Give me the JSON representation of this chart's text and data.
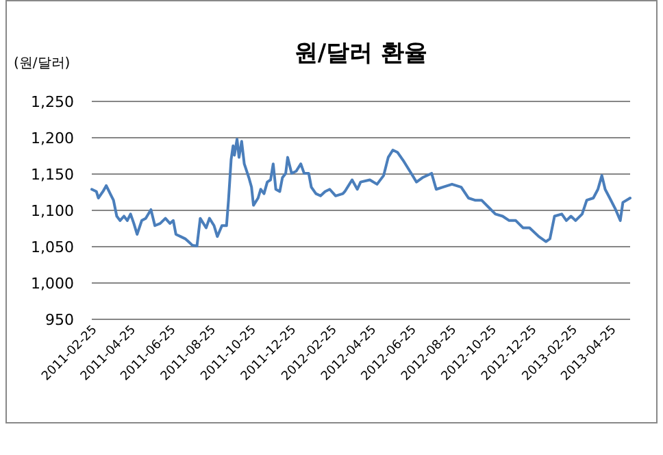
{
  "chart_data": {
    "type": "line",
    "title": "원/달러 환율",
    "ylabel": "(원/달러)",
    "xlim": [
      "2011-02-25",
      "2013-05-24"
    ],
    "xticks": [
      "2011-02-25",
      "2011-04-25",
      "2011-06-25",
      "2011-08-25",
      "2011-10-25",
      "2011-12-25",
      "2012-02-25",
      "2012-04-25",
      "2012-06-25",
      "2012-08-25",
      "2012-10-25",
      "2012-12-25",
      "2013-02-25",
      "2013-04-25"
    ],
    "ylim": [
      950,
      1250
    ],
    "yticks": [
      {
        "value": 950,
        "label": "950"
      },
      {
        "value": 1000,
        "label": "1,000"
      },
      {
        "value": 1050,
        "label": "1,050"
      },
      {
        "value": 1100,
        "label": "1,100"
      },
      {
        "value": 1150,
        "label": "1,150"
      },
      {
        "value": 1200,
        "label": "1,200"
      },
      {
        "value": 1250,
        "label": "1,250"
      }
    ],
    "grid": "y",
    "marker": "none",
    "line_style": "solid",
    "series": [
      {
        "color": "#4a7ebb",
        "x": [
          "2011-02-25",
          "2011-03-04",
          "2011-03-07",
          "2011-03-14",
          "2011-03-19",
          "2011-03-25",
          "2011-03-30",
          "2011-04-04",
          "2011-04-09",
          "2011-04-15",
          "2011-04-20",
          "2011-04-25",
          "2011-04-30",
          "2011-05-05",
          "2011-05-12",
          "2011-05-18",
          "2011-05-26",
          "2011-06-01",
          "2011-06-09",
          "2011-06-17",
          "2011-06-24",
          "2011-06-29",
          "2011-07-03",
          "2011-07-10",
          "2011-07-17",
          "2011-07-22",
          "2011-07-28",
          "2011-08-04",
          "2011-08-09",
          "2011-08-18",
          "2011-08-23",
          "2011-08-30",
          "2011-09-04",
          "2011-09-11",
          "2011-09-18",
          "2011-09-21",
          "2011-09-25",
          "2011-09-28",
          "2011-09-30",
          "2011-10-04",
          "2011-10-07",
          "2011-10-11",
          "2011-10-15",
          "2011-10-22",
          "2011-10-26",
          "2011-10-29",
          "2011-11-05",
          "2011-11-09",
          "2011-11-14",
          "2011-11-19",
          "2011-11-24",
          "2011-11-28",
          "2011-12-02",
          "2011-12-08",
          "2011-12-12",
          "2011-12-17",
          "2011-12-20",
          "2011-12-26",
          "2012-01-02",
          "2012-01-09",
          "2012-01-14",
          "2012-01-21",
          "2012-01-25",
          "2012-02-01",
          "2012-02-08",
          "2012-02-15",
          "2012-02-22",
          "2012-03-02",
          "2012-03-13",
          "2012-03-16",
          "2012-03-27",
          "2012-04-04",
          "2012-04-09",
          "2012-04-23",
          "2012-05-04",
          "2012-05-14",
          "2012-05-21",
          "2012-05-28",
          "2012-06-04",
          "2012-06-14",
          "2012-06-25",
          "2012-07-03",
          "2012-07-12",
          "2012-07-26",
          "2012-08-02",
          "2012-08-12",
          "2012-08-26",
          "2012-09-09",
          "2012-09-20",
          "2012-09-30",
          "2012-10-10",
          "2012-10-21",
          "2012-10-31",
          "2012-11-11",
          "2012-11-21",
          "2012-12-01",
          "2012-12-12",
          "2012-12-22",
          "2013-01-05",
          "2013-01-16",
          "2013-01-22",
          "2013-01-29",
          "2013-02-09",
          "2013-02-16",
          "2013-02-23",
          "2013-03-02",
          "2013-03-12",
          "2013-03-19",
          "2013-03-29",
          "2013-04-05",
          "2013-04-11",
          "2013-04-16",
          "2013-04-23",
          "2013-05-02",
          "2013-05-09",
          "2013-05-13",
          "2013-05-24"
        ],
        "values": [
          1129,
          1126,
          1117,
          1126,
          1134,
          1123,
          1114,
          1092,
          1086,
          1092,
          1086,
          1095,
          1082,
          1067,
          1086,
          1089,
          1101,
          1079,
          1082,
          1089,
          1082,
          1086,
          1067,
          1064,
          1061,
          1057,
          1052,
          1051,
          1089,
          1076,
          1089,
          1079,
          1064,
          1079,
          1079,
          1114,
          1170,
          1189,
          1176,
          1198,
          1173,
          1195,
          1164,
          1145,
          1132,
          1107,
          1117,
          1129,
          1123,
          1139,
          1142,
          1164,
          1129,
          1126,
          1145,
          1151,
          1173,
          1151,
          1154,
          1164,
          1151,
          1151,
          1132,
          1123,
          1120,
          1126,
          1129,
          1120,
          1123,
          1126,
          1142,
          1129,
          1139,
          1142,
          1136,
          1148,
          1173,
          1183,
          1180,
          1167,
          1151,
          1139,
          1145,
          1151,
          1129,
          1132,
          1136,
          1132,
          1117,
          1114,
          1114,
          1104,
          1095,
          1092,
          1086,
          1086,
          1076,
          1076,
          1064,
          1057,
          1061,
          1092,
          1095,
          1086,
          1092,
          1086,
          1095,
          1114,
          1117,
          1129,
          1148,
          1129,
          1117,
          1101,
          1086,
          1111,
          1117
        ]
      }
    ]
  }
}
